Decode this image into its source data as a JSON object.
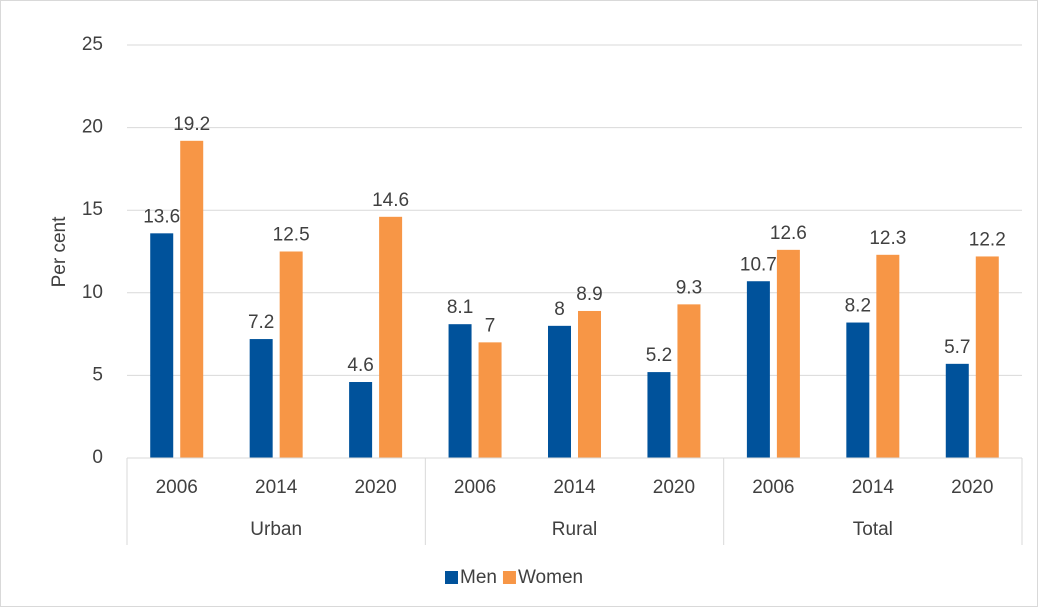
{
  "chart_data": {
    "type": "bar",
    "y_label": "Per cent",
    "groups": [
      {
        "name": "Urban",
        "categories": [
          "2006",
          "2014",
          "2020"
        ]
      },
      {
        "name": "Rural",
        "categories": [
          "2006",
          "2014",
          "2020"
        ]
      },
      {
        "name": "Total",
        "categories": [
          "2006",
          "2014",
          "2020"
        ]
      }
    ],
    "series": [
      {
        "name": "Men",
        "color": "#00529b",
        "values": [
          13.6,
          7.2,
          4.6,
          8.1,
          8,
          5.2,
          10.7,
          8.2,
          5.7
        ]
      },
      {
        "name": "Women",
        "color": "#f79646",
        "values": [
          19.2,
          12.5,
          14.6,
          7,
          8.9,
          9.3,
          12.6,
          12.3,
          12.2
        ]
      }
    ],
    "ylim": [
      0,
      25
    ],
    "yticks": [
      0,
      5,
      10,
      15,
      20,
      25
    ],
    "grid": true,
    "legend": "bottom"
  }
}
